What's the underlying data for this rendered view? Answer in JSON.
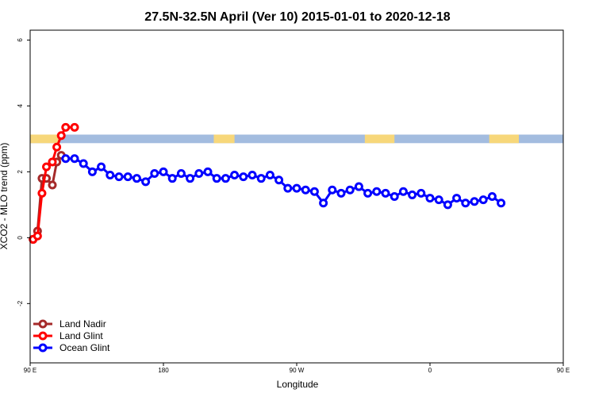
{
  "chart_data": {
    "type": "line",
    "title": "27.5N-32.5N April (Ver 10)   2015-01-01 to 2020-12-18",
    "xlabel": "Longitude",
    "ylabel": "XCO2 - MLO trend (ppm)",
    "xlim": [
      90,
      450
    ],
    "ylim": [
      -3.8,
      6.3
    ],
    "x_ticks": [
      {
        "value": 90,
        "label": "90 E"
      },
      {
        "value": 180,
        "label": "180"
      },
      {
        "value": 270,
        "label": "90 W"
      },
      {
        "value": 360,
        "label": "0"
      },
      {
        "value": 450,
        "label": "90 E"
      },
      {
        "value": 540,
        "label": "180"
      }
    ],
    "y_ticks": [
      {
        "value": -2,
        "label": "-2"
      },
      {
        "value": 0,
        "label": "0"
      },
      {
        "value": 2,
        "label": "2"
      },
      {
        "value": 4,
        "label": "4"
      },
      {
        "value": 6,
        "label": "6"
      }
    ],
    "grid": false,
    "legend_position": "bottom-left",
    "map_strip": {
      "y_range": [
        2.87,
        3.13
      ],
      "ocean_color": "#a3bcdf",
      "land_color": "#f7d77a"
    },
    "series": [
      {
        "name": "Land Nadir",
        "color": "#a52a2a",
        "x": [
          92,
          95,
          98,
          101,
          105,
          108,
          111
        ],
        "y": [
          -0.05,
          0.2,
          1.8,
          1.8,
          1.6,
          2.3,
          2.5
        ]
      },
      {
        "name": "Land Glint",
        "color": "#ff0000",
        "x": [
          92,
          95,
          98,
          101,
          105,
          108,
          111,
          114,
          120
        ],
        "y": [
          -0.05,
          0.05,
          1.35,
          2.15,
          2.3,
          2.75,
          3.1,
          3.35,
          3.35
        ]
      },
      {
        "name": "Ocean Glint",
        "color": "#0000ff",
        "x": [
          114,
          120,
          126,
          132,
          138,
          144,
          150,
          156,
          162,
          168,
          174,
          180,
          186,
          192,
          198,
          204,
          210,
          216,
          222,
          228,
          234,
          240,
          246,
          252,
          258,
          264,
          270,
          276,
          282,
          288,
          294,
          300,
          306,
          312,
          318,
          324,
          330,
          336,
          342,
          348,
          354,
          360,
          366,
          372,
          378,
          384,
          390,
          396,
          402,
          408
        ],
        "y": [
          2.4,
          2.4,
          2.25,
          2.0,
          2.15,
          1.9,
          1.85,
          1.85,
          1.8,
          1.7,
          1.95,
          2.0,
          1.8,
          1.95,
          1.8,
          1.95,
          2.0,
          1.8,
          1.8,
          1.9,
          1.85,
          1.9,
          1.8,
          1.9,
          1.75,
          1.5,
          1.5,
          1.45,
          1.4,
          1.05,
          1.45,
          1.35,
          1.45,
          1.55,
          1.35,
          1.4,
          1.35,
          1.25,
          1.4,
          1.3,
          1.35,
          1.2,
          1.15,
          1.0,
          1.2,
          1.05,
          1.1,
          1.15,
          1.25,
          1.05
        ]
      }
    ]
  }
}
